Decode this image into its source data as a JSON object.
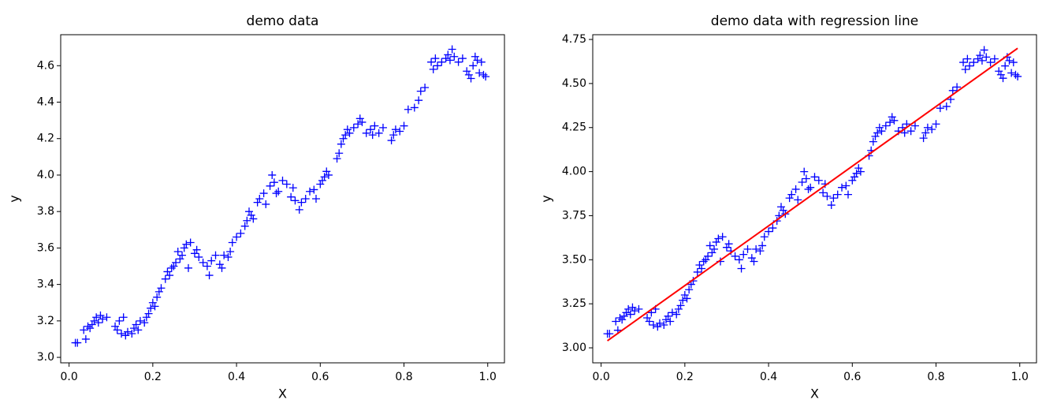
{
  "chart_data": [
    {
      "type": "scatter",
      "title": "demo data",
      "x_label": "X",
      "y_label": "y",
      "xlim": [
        -0.02,
        1.04
      ],
      "ylim": [
        2.97,
        4.77
      ],
      "xticks": [
        {
          "value": 0,
          "label": "0.0"
        },
        0.2,
        0.4,
        0.6,
        0.8,
        {
          "value": 1,
          "label": "1.0"
        }
      ],
      "yticks": [
        {
          "value": 3,
          "label": "3.0"
        },
        3.2,
        3.4,
        3.6,
        3.8,
        {
          "value": 4,
          "label": "4.0"
        },
        4.2,
        4.4,
        4.6
      ],
      "series": [
        {
          "type": "scatter",
          "marker": "+",
          "color": "#0000ff",
          "x": [
            0.015,
            0.02,
            0.035,
            0.04,
            0.045,
            0.05,
            0.055,
            0.06,
            0.065,
            0.07,
            0.075,
            0.08,
            0.09,
            0.11,
            0.115,
            0.12,
            0.125,
            0.13,
            0.135,
            0.14,
            0.15,
            0.155,
            0.16,
            0.165,
            0.17,
            0.18,
            0.185,
            0.19,
            0.195,
            0.2,
            0.205,
            0.21,
            0.215,
            0.22,
            0.23,
            0.235,
            0.24,
            0.245,
            0.25,
            0.255,
            0.26,
            0.265,
            0.27,
            0.275,
            0.28,
            0.285,
            0.29,
            0.3,
            0.305,
            0.31,
            0.32,
            0.33,
            0.335,
            0.34,
            0.35,
            0.36,
            0.365,
            0.37,
            0.38,
            0.385,
            0.39,
            0.4,
            0.41,
            0.42,
            0.425,
            0.43,
            0.435,
            0.44,
            0.45,
            0.455,
            0.465,
            0.47,
            0.48,
            0.485,
            0.49,
            0.495,
            0.5,
            0.51,
            0.52,
            0.53,
            0.535,
            0.54,
            0.55,
            0.555,
            0.565,
            0.575,
            0.585,
            0.59,
            0.6,
            0.605,
            0.61,
            0.615,
            0.62,
            0.64,
            0.645,
            0.65,
            0.655,
            0.66,
            0.665,
            0.67,
            0.68,
            0.69,
            0.695,
            0.7,
            0.71,
            0.72,
            0.725,
            0.73,
            0.74,
            0.75,
            0.77,
            0.775,
            0.78,
            0.79,
            0.8,
            0.81,
            0.825,
            0.835,
            0.84,
            0.85,
            0.865,
            0.87,
            0.875,
            0.88,
            0.89,
            0.9,
            0.905,
            0.91,
            0.915,
            0.92,
            0.93,
            0.94,
            0.95,
            0.955,
            0.96,
            0.965,
            0.97,
            0.975,
            0.98,
            0.985,
            0.99,
            0.995
          ],
          "values": [
            3.08,
            3.08,
            3.15,
            3.1,
            3.17,
            3.16,
            3.18,
            3.2,
            3.22,
            3.19,
            3.23,
            3.21,
            3.22,
            3.17,
            3.15,
            3.2,
            3.13,
            3.22,
            3.12,
            3.14,
            3.13,
            3.16,
            3.18,
            3.15,
            3.2,
            3.19,
            3.22,
            3.24,
            3.27,
            3.3,
            3.28,
            3.33,
            3.36,
            3.38,
            3.43,
            3.47,
            3.45,
            3.49,
            3.5,
            3.52,
            3.58,
            3.54,
            3.56,
            3.6,
            3.62,
            3.49,
            3.63,
            3.57,
            3.59,
            3.55,
            3.52,
            3.5,
            3.45,
            3.53,
            3.56,
            3.51,
            3.49,
            3.56,
            3.55,
            3.58,
            3.63,
            3.66,
            3.68,
            3.72,
            3.75,
            3.8,
            3.78,
            3.76,
            3.85,
            3.87,
            3.9,
            3.84,
            3.94,
            4.0,
            3.96,
            3.9,
            3.91,
            3.97,
            3.95,
            3.88,
            3.93,
            3.86,
            3.81,
            3.85,
            3.87,
            3.91,
            3.92,
            3.87,
            3.95,
            3.97,
            3.99,
            4.02,
            4.0,
            4.09,
            4.12,
            4.17,
            4.2,
            4.22,
            4.25,
            4.23,
            4.26,
            4.28,
            4.31,
            4.29,
            4.23,
            4.25,
            4.22,
            4.27,
            4.23,
            4.26,
            4.19,
            4.22,
            4.25,
            4.24,
            4.27,
            4.36,
            4.37,
            4.41,
            4.46,
            4.48,
            4.62,
            4.58,
            4.64,
            4.6,
            4.62,
            4.64,
            4.66,
            4.63,
            4.69,
            4.65,
            4.62,
            4.64,
            4.57,
            4.55,
            4.53,
            4.6,
            4.65,
            4.63,
            4.56,
            4.62,
            4.55,
            4.54
          ]
        }
      ]
    },
    {
      "type": "scatter",
      "title": "demo data with regression line",
      "x_label": "X",
      "y_label": "y",
      "xlim": [
        -0.02,
        1.04
      ],
      "ylim": [
        2.915,
        4.777
      ],
      "xticks": [
        {
          "value": 0,
          "label": "0.0"
        },
        0.2,
        0.4,
        0.6,
        0.8,
        {
          "value": 1,
          "label": "1.0"
        }
      ],
      "yticks": [
        {
          "value": 3,
          "label": "3.00"
        },
        3.25,
        {
          "value": 3.5,
          "label": "3.50"
        },
        3.75,
        {
          "value": 4,
          "label": "4.00"
        },
        4.25,
        {
          "value": 4.5,
          "label": "4.50"
        },
        4.75
      ],
      "series": [
        {
          "type": "scatter",
          "marker": "+",
          "color": "#0000ff",
          "x": [
            0.015,
            0.02,
            0.035,
            0.04,
            0.045,
            0.05,
            0.055,
            0.06,
            0.065,
            0.07,
            0.075,
            0.08,
            0.09,
            0.11,
            0.115,
            0.12,
            0.125,
            0.13,
            0.135,
            0.14,
            0.15,
            0.155,
            0.16,
            0.165,
            0.17,
            0.18,
            0.185,
            0.19,
            0.195,
            0.2,
            0.205,
            0.21,
            0.215,
            0.22,
            0.23,
            0.235,
            0.24,
            0.245,
            0.25,
            0.255,
            0.26,
            0.265,
            0.27,
            0.275,
            0.28,
            0.285,
            0.29,
            0.3,
            0.305,
            0.31,
            0.32,
            0.33,
            0.335,
            0.34,
            0.35,
            0.36,
            0.365,
            0.37,
            0.38,
            0.385,
            0.39,
            0.4,
            0.41,
            0.42,
            0.425,
            0.43,
            0.435,
            0.44,
            0.45,
            0.455,
            0.465,
            0.47,
            0.48,
            0.485,
            0.49,
            0.495,
            0.5,
            0.51,
            0.52,
            0.53,
            0.535,
            0.54,
            0.55,
            0.555,
            0.565,
            0.575,
            0.585,
            0.59,
            0.6,
            0.605,
            0.61,
            0.615,
            0.62,
            0.64,
            0.645,
            0.65,
            0.655,
            0.66,
            0.665,
            0.67,
            0.68,
            0.69,
            0.695,
            0.7,
            0.71,
            0.72,
            0.725,
            0.73,
            0.74,
            0.75,
            0.77,
            0.775,
            0.78,
            0.79,
            0.8,
            0.81,
            0.825,
            0.835,
            0.84,
            0.85,
            0.865,
            0.87,
            0.875,
            0.88,
            0.89,
            0.9,
            0.905,
            0.91,
            0.915,
            0.92,
            0.93,
            0.94,
            0.95,
            0.955,
            0.96,
            0.965,
            0.97,
            0.975,
            0.98,
            0.985,
            0.99,
            0.995
          ],
          "values": [
            3.08,
            3.08,
            3.15,
            3.1,
            3.17,
            3.16,
            3.18,
            3.2,
            3.22,
            3.19,
            3.23,
            3.21,
            3.22,
            3.17,
            3.15,
            3.2,
            3.13,
            3.22,
            3.12,
            3.14,
            3.13,
            3.16,
            3.18,
            3.15,
            3.2,
            3.19,
            3.22,
            3.24,
            3.27,
            3.3,
            3.28,
            3.33,
            3.36,
            3.38,
            3.43,
            3.47,
            3.45,
            3.49,
            3.5,
            3.52,
            3.58,
            3.54,
            3.56,
            3.6,
            3.62,
            3.49,
            3.63,
            3.57,
            3.59,
            3.55,
            3.52,
            3.5,
            3.45,
            3.53,
            3.56,
            3.51,
            3.49,
            3.56,
            3.55,
            3.58,
            3.63,
            3.66,
            3.68,
            3.72,
            3.75,
            3.8,
            3.78,
            3.76,
            3.85,
            3.87,
            3.9,
            3.84,
            3.94,
            4.0,
            3.96,
            3.9,
            3.91,
            3.97,
            3.95,
            3.88,
            3.93,
            3.86,
            3.81,
            3.85,
            3.87,
            3.91,
            3.92,
            3.87,
            3.95,
            3.97,
            3.99,
            4.02,
            4.0,
            4.09,
            4.12,
            4.17,
            4.2,
            4.22,
            4.25,
            4.23,
            4.26,
            4.28,
            4.31,
            4.29,
            4.23,
            4.25,
            4.22,
            4.27,
            4.23,
            4.26,
            4.19,
            4.22,
            4.25,
            4.24,
            4.27,
            4.36,
            4.37,
            4.41,
            4.46,
            4.48,
            4.62,
            4.58,
            4.64,
            4.6,
            4.62,
            4.64,
            4.66,
            4.63,
            4.69,
            4.65,
            4.62,
            4.64,
            4.57,
            4.55,
            4.53,
            4.6,
            4.65,
            4.63,
            4.56,
            4.62,
            4.55,
            4.54
          ]
        },
        {
          "type": "line",
          "color": "#ff0000",
          "x": [
            0.015,
            0.995
          ],
          "values": [
            3.04,
            4.7
          ]
        }
      ]
    }
  ]
}
